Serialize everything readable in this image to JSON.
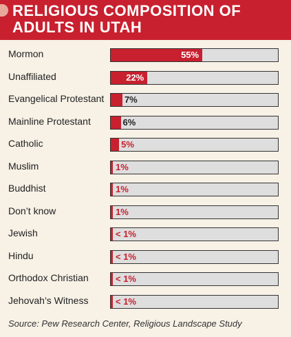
{
  "header": {
    "title": "RELIGIOUS COMPOSITION OF ADULTS IN UTAH"
  },
  "chart_data": {
    "type": "bar",
    "orientation": "horizontal",
    "title": "RELIGIOUS COMPOSITION OF ADULTS IN UTAH",
    "categories": [
      "Mormon",
      "Unaffiliated",
      "Evangelical Protestant",
      "Mainline Protestant",
      "Catholic",
      "Muslim",
      "Buddhist",
      "Don’t know",
      "Jewish",
      "Hindu",
      "Orthodox Christian",
      "Jehovah’s Witness"
    ],
    "values": [
      55,
      22,
      7,
      6,
      5,
      1,
      1,
      1,
      0.5,
      0.5,
      0.5,
      0.5
    ],
    "labels": [
      "55%",
      "22%",
      "7%",
      "6%",
      "5%",
      "1%",
      "1%",
      "1%",
      "< 1%",
      "< 1%",
      "< 1%",
      "< 1%"
    ],
    "xlim": [
      0,
      100
    ],
    "units": "%",
    "colors": {
      "bar": "#c8202f",
      "track": "#dedede"
    }
  },
  "source": "Source: Pew Research Center, Religious Landscape Study"
}
